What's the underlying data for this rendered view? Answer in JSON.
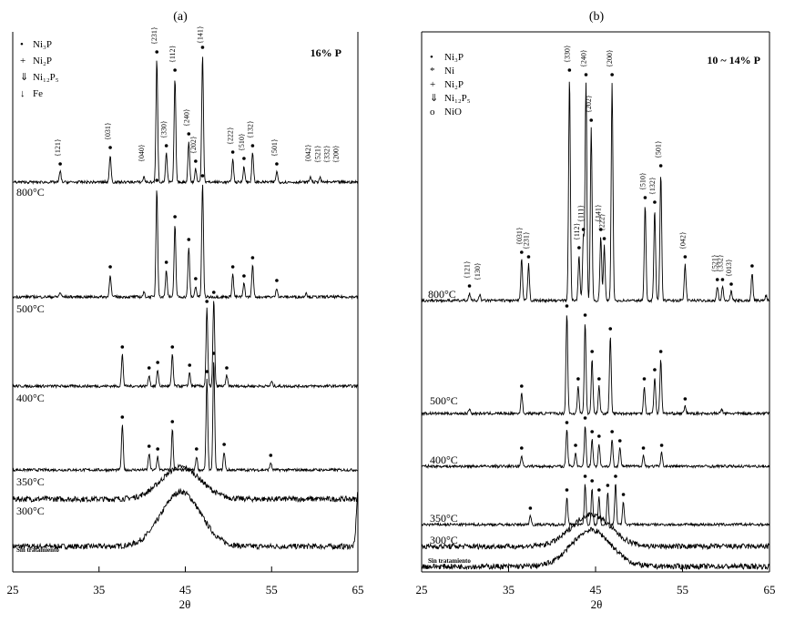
{
  "chart_data": [
    {
      "type": "line",
      "panel_label": "(a)",
      "composition": "16% P",
      "xlabel": "2θ",
      "xlim": [
        25,
        65
      ],
      "x_ticks": [
        "25",
        "35",
        "45",
        "55",
        "65"
      ],
      "legend": [
        "Ni3P",
        "Ni2P",
        "Ni12P5",
        "Fe"
      ],
      "legend_location": "top-left",
      "series": [
        {
          "name": "Sin tratamiento",
          "type": "amorphous",
          "peaks": [
            [
              44.5,
              60
            ],
            [
              65,
              60
            ]
          ]
        },
        {
          "name": "300°C",
          "type": "amorphous",
          "peaks": [
            [
              44.5,
              35
            ]
          ]
        },
        {
          "name": "350°C",
          "peaks": [
            [
              37.7,
              50
            ],
            [
              40.8,
              18
            ],
            [
              41.8,
              15
            ],
            [
              43.5,
              45
            ],
            [
              46.3,
              15
            ],
            [
              47.5,
              100
            ],
            [
              48.3,
              120
            ],
            [
              49.5,
              20
            ],
            [
              54.9,
              8
            ]
          ]
        },
        {
          "name": "400°C",
          "peaks": [
            [
              37.7,
              35
            ],
            [
              40.8,
              12
            ],
            [
              41.8,
              18
            ],
            [
              43.5,
              35
            ],
            [
              45.5,
              15
            ],
            [
              47.5,
              85
            ],
            [
              48.3,
              95
            ],
            [
              49.8,
              12
            ],
            [
              55,
              5
            ]
          ]
        },
        {
          "name": "500°C",
          "peaks": [
            [
              30.5,
              5
            ],
            [
              36.3,
              25
            ],
            [
              40.2,
              5
            ],
            [
              41.7,
              120
            ],
            [
              42.8,
              30
            ],
            [
              43.8,
              80
            ],
            [
              45.4,
              55
            ],
            [
              46.2,
              12
            ],
            [
              47.0,
              125
            ],
            [
              50.5,
              25
            ],
            [
              51.8,
              15
            ],
            [
              52.8,
              35
            ],
            [
              55.6,
              10
            ],
            [
              59,
              5
            ]
          ]
        },
        {
          "name": "800°C",
          "peaks": [
            [
              30.5,
              12
            ],
            [
              36.3,
              30
            ],
            [
              40.2,
              6
            ],
            [
              41.7,
              135
            ],
            [
              42.8,
              32
            ],
            [
              43.8,
              115
            ],
            [
              45.4,
              45
            ],
            [
              46.2,
              15
            ],
            [
              47.0,
              140
            ],
            [
              50.5,
              25
            ],
            [
              51.8,
              18
            ],
            [
              52.8,
              32
            ],
            [
              55.6,
              12
            ],
            [
              59.5,
              6
            ],
            [
              60.6,
              5
            ]
          ]
        }
      ],
      "hkl_labels": [
        "{121}",
        "{031}",
        "{040}",
        "{231}",
        "{330}",
        "{112}",
        "{240}",
        "{202}",
        "{141}",
        "{222}",
        "{510}",
        "{132}",
        "{501}",
        "{042}",
        "{521}",
        "{332}",
        "{200}"
      ]
    },
    {
      "type": "line",
      "panel_label": "(b)",
      "composition": "10 ~ 14% P",
      "xlabel": "2θ",
      "xlim": [
        25,
        65
      ],
      "x_ticks": [
        "25",
        "35",
        "45",
        "55",
        "65"
      ],
      "legend": [
        "Ni3P",
        "Ni",
        "Ni2P",
        "Ni12P5",
        "NiO"
      ],
      "legend_location": "top-left",
      "series": [
        {
          "name": "Sin tratamiento",
          "type": "amorphous",
          "peaks": [
            [
              44.5,
              40
            ]
          ]
        },
        {
          "name": "300°C",
          "type": "amorphous",
          "peaks": [
            [
              44.5,
              35
            ]
          ]
        },
        {
          "name": "350°C",
          "peaks": [
            [
              37.5,
              10
            ],
            [
              41.7,
              30
            ],
            [
              43.8,
              45
            ],
            [
              44.6,
              40
            ],
            [
              45.4,
              30
            ],
            [
              46.4,
              35
            ],
            [
              47.3,
              45
            ],
            [
              48.2,
              25
            ]
          ]
        },
        {
          "name": "400°C",
          "peaks": [
            [
              36.5,
              12
            ],
            [
              41.7,
              40
            ],
            [
              42.7,
              15
            ],
            [
              43.8,
              45
            ],
            [
              44.6,
              30
            ],
            [
              45.4,
              25
            ],
            [
              46.9,
              30
            ],
            [
              47.8,
              20
            ],
            [
              50.5,
              12
            ],
            [
              52.6,
              15
            ]
          ]
        },
        {
          "name": "500°C",
          "peaks": [
            [
              30.5,
              5
            ],
            [
              36.5,
              22
            ],
            [
              41.7,
              110
            ],
            [
              43.0,
              30
            ],
            [
              43.8,
              100
            ],
            [
              44.6,
              60
            ],
            [
              45.4,
              30
            ],
            [
              46.7,
              85
            ],
            [
              50.6,
              30
            ],
            [
              51.8,
              40
            ],
            [
              52.5,
              60
            ],
            [
              55.3,
              8
            ],
            [
              59.5,
              5
            ]
          ]
        },
        {
          "name": "800°C",
          "peaks": [
            [
              30.5,
              8
            ],
            [
              31.7,
              6
            ],
            [
              36.5,
              45
            ],
            [
              37.3,
              40
            ],
            [
              42.0,
              245
            ],
            [
              43.1,
              50
            ],
            [
              43.6,
              70
            ],
            [
              43.9,
              240
            ],
            [
              44.5,
              190
            ],
            [
              45.6,
              70
            ],
            [
              46.0,
              60
            ],
            [
              46.9,
              240
            ],
            [
              50.7,
              105
            ],
            [
              51.8,
              100
            ],
            [
              52.5,
              140
            ],
            [
              55.3,
              40
            ],
            [
              59.0,
              15
            ],
            [
              59.6,
              15
            ],
            [
              60.6,
              10
            ],
            [
              63.0,
              30
            ],
            [
              64.6,
              6
            ]
          ]
        }
      ],
      "hkl_labels": [
        "{121}",
        "{130}",
        "{031}",
        "{231}",
        "{330}",
        "{112}",
        "{111}",
        "{240}",
        "{202}",
        "{141}",
        "{222}",
        "{200}",
        "{510}",
        "{132}",
        "{501}",
        "{042}",
        "{521}",
        "{332}",
        "{013}"
      ]
    }
  ],
  "panelA": {
    "title": "(a)",
    "composition": "16% P",
    "legend": [
      {
        "symbol": "•",
        "text": "Ni₃P"
      },
      {
        "symbol": "+",
        "text": "Ni₂P"
      },
      {
        "symbol": "⇓",
        "text": "Ni₁₂P₅"
      },
      {
        "symbol": "↓",
        "text": "Fe"
      }
    ],
    "temps": [
      "800°C",
      "500°C",
      "400°C",
      "350°C",
      "300°C",
      "Sin tratamiento"
    ],
    "xticks": [
      "25",
      "35",
      "45",
      "55",
      "65"
    ],
    "xlabel": "2θ",
    "hkl": [
      "{121}",
      "{031}",
      "{040}",
      "{231}",
      "{330}",
      "{112}",
      "{240}",
      "{202}",
      "{141}",
      "{222}",
      "{510}",
      "{132}",
      "{501}",
      "{042}",
      "{521}",
      "{332}",
      "{200}"
    ]
  },
  "panelB": {
    "title": "(b)",
    "composition": "10 ~ 14% P",
    "legend": [
      {
        "symbol": "•",
        "text": "Ni₃P"
      },
      {
        "symbol": "*",
        "text": "Ni"
      },
      {
        "symbol": "+",
        "text": "Ni₂P"
      },
      {
        "symbol": "⇓",
        "text": "Ni₁₂P₅"
      },
      {
        "symbol": "o",
        "text": "NiO"
      }
    ],
    "temps": [
      "800°C",
      "500°C",
      "400°C",
      "350°C",
      "300°C",
      "Sin tratamiento"
    ],
    "xticks": [
      "25",
      "35",
      "45",
      "55",
      "65"
    ],
    "xlabel": "2θ",
    "hkl": [
      "{121}",
      "{130}",
      "{031}",
      "{231}",
      "{330}",
      "{112}",
      "{111}",
      "{240}",
      "{202}",
      "{141}",
      "{222}",
      "{200}",
      "{510}",
      "{132}",
      "{501}",
      "{042}",
      "{521}",
      "{332}",
      "{013}"
    ]
  }
}
